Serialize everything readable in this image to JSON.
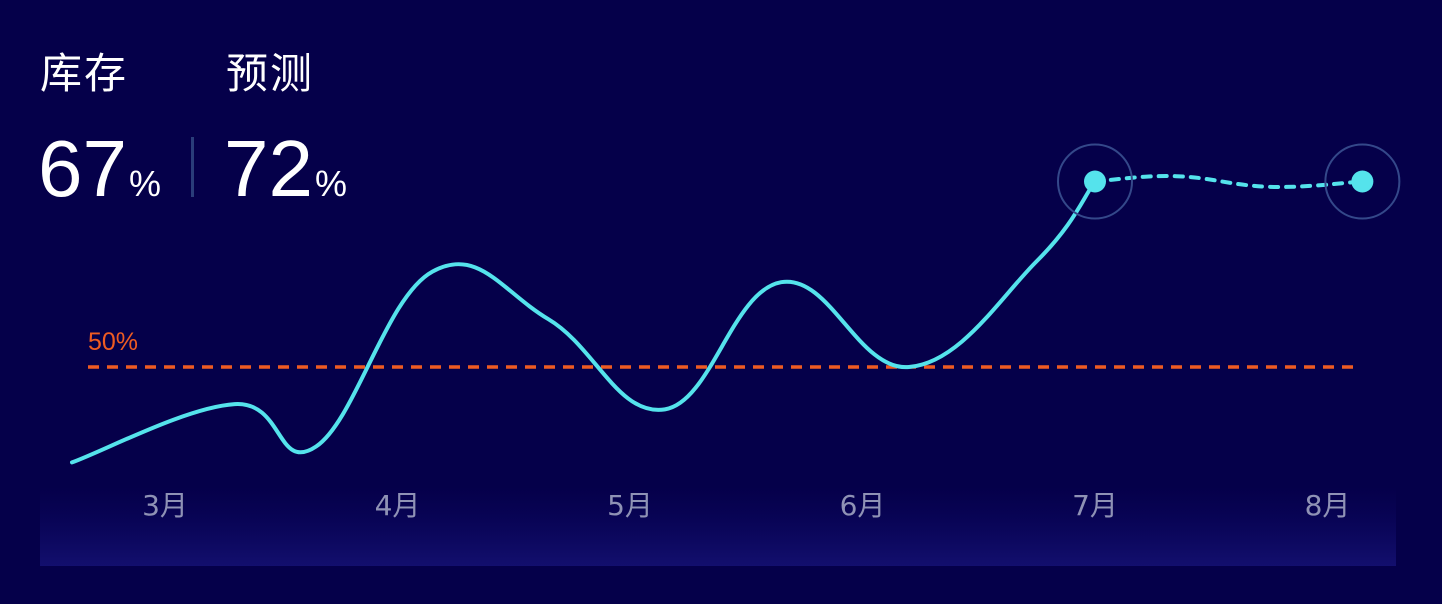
{
  "header": {
    "inventory_label": "库存",
    "inventory_value": "67",
    "inventory_unit": "%",
    "forecast_label": "预测",
    "forecast_value": "72",
    "forecast_unit": "%"
  },
  "colors": {
    "background": "#05004a",
    "line": "#55e3ec",
    "threshold": "#ee5b22",
    "axis_text": "#8f92b5",
    "marker_ring": "#34488a"
  },
  "chart_data": {
    "type": "line",
    "x_ticks": [
      "3月",
      "4月",
      "5月",
      "6月",
      "7月",
      "8月"
    ],
    "threshold": {
      "label": "50%",
      "value": 50
    },
    "series": [
      {
        "style": "solid",
        "points": [
          {
            "x": 2.6,
            "y": 32
          },
          {
            "x": 3.3,
            "y": 43
          },
          {
            "x": 3.65,
            "y": 35
          },
          {
            "x": 4.15,
            "y": 68
          },
          {
            "x": 4.65,
            "y": 59
          },
          {
            "x": 5.15,
            "y": 42
          },
          {
            "x": 5.65,
            "y": 66
          },
          {
            "x": 6.2,
            "y": 50
          },
          {
            "x": 6.75,
            "y": 70
          },
          {
            "x": 7.0,
            "y": 85
          }
        ]
      },
      {
        "style": "dashed",
        "points": [
          {
            "x": 7.0,
            "y": 85
          },
          {
            "x": 7.35,
            "y": 86
          },
          {
            "x": 7.75,
            "y": 84
          },
          {
            "x": 8.15,
            "y": 85
          }
        ]
      }
    ],
    "markers": [
      {
        "x": 7.0,
        "y": 85
      },
      {
        "x": 8.15,
        "y": 85
      }
    ]
  }
}
